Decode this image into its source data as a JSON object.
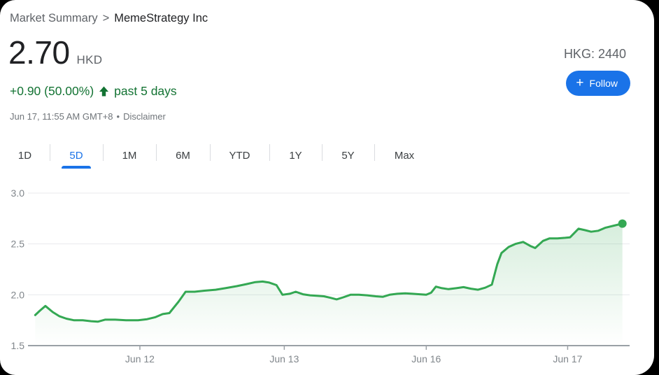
{
  "header": {
    "breadcrumb_root": "Market Summary",
    "separator": ">",
    "company": "MemeStrategy Inc"
  },
  "quote": {
    "price": "2.70",
    "currency": "HKD",
    "change": "+0.90 (50.00%)",
    "change_direction": "up",
    "change_suffix": "past 5 days",
    "timestamp": "Jun 17, 11:55 AM GMT+8",
    "dot_separator": "•",
    "disclaimer_label": "Disclaimer",
    "exchange_ticker": "HKG: 2440"
  },
  "follow_button": {
    "plus": "+",
    "label": "Follow"
  },
  "tabs": {
    "items": [
      "1D",
      "5D",
      "1M",
      "6M",
      "YTD",
      "1Y",
      "5Y",
      "Max"
    ],
    "active": "5D"
  },
  "colors": {
    "accent_blue": "#1a73e8",
    "text_green": "#137333",
    "line_green": "#34a853",
    "grid_gray": "#e8eaed",
    "axis_gray": "#9aa0a6",
    "label_gray": "#80868b"
  },
  "chart_data": {
    "type": "line",
    "title": "MemeStrategy Inc stock price, past 5 days",
    "currency": "HKD",
    "ylim": [
      1.5,
      3.0
    ],
    "y_ticks": [
      3.0,
      2.5,
      2.0,
      1.5
    ],
    "grid": true,
    "legend": "none",
    "x_ticks": [
      {
        "label": "Jun 12",
        "t": 18.6
      },
      {
        "label": "Jun 13",
        "t": 42.6
      },
      {
        "label": "Jun 16",
        "t": 66.2
      },
      {
        "label": "Jun 17",
        "t": 89.7
      }
    ],
    "points": [
      [
        1.2,
        1.8
      ],
      [
        2.0,
        1.845
      ],
      [
        2.9,
        1.89
      ],
      [
        4.1,
        1.83
      ],
      [
        5.2,
        1.79
      ],
      [
        6.4,
        1.765
      ],
      [
        7.6,
        1.75
      ],
      [
        9.1,
        1.75
      ],
      [
        10.5,
        1.74
      ],
      [
        11.6,
        1.735
      ],
      [
        12.8,
        1.755
      ],
      [
        14.5,
        1.755
      ],
      [
        16.3,
        1.75
      ],
      [
        18.3,
        1.75
      ],
      [
        19.8,
        1.76
      ],
      [
        21.2,
        1.78
      ],
      [
        22.4,
        1.81
      ],
      [
        23.5,
        1.82
      ],
      [
        25.0,
        1.93
      ],
      [
        26.2,
        2.03
      ],
      [
        27.7,
        2.03
      ],
      [
        29.3,
        2.04
      ],
      [
        31.2,
        2.05
      ],
      [
        32.8,
        2.065
      ],
      [
        34.7,
        2.085
      ],
      [
        36.3,
        2.105
      ],
      [
        37.8,
        2.125
      ],
      [
        39.0,
        2.13
      ],
      [
        40.1,
        2.12
      ],
      [
        41.3,
        2.095
      ],
      [
        42.3,
        2.0
      ],
      [
        43.5,
        2.01
      ],
      [
        44.5,
        2.03
      ],
      [
        45.7,
        2.005
      ],
      [
        46.9,
        1.995
      ],
      [
        48.0,
        1.99
      ],
      [
        49.2,
        1.985
      ],
      [
        50.3,
        1.97
      ],
      [
        51.3,
        1.955
      ],
      [
        52.4,
        1.975
      ],
      [
        53.6,
        2.0
      ],
      [
        55.0,
        2.0
      ],
      [
        56.4,
        1.995
      ],
      [
        57.8,
        1.985
      ],
      [
        59.0,
        1.98
      ],
      [
        60.1,
        2.0
      ],
      [
        61.4,
        2.01
      ],
      [
        62.7,
        2.015
      ],
      [
        63.9,
        2.01
      ],
      [
        65.1,
        2.005
      ],
      [
        66.2,
        2.0
      ],
      [
        67.0,
        2.02
      ],
      [
        67.8,
        2.08
      ],
      [
        68.8,
        2.065
      ],
      [
        69.9,
        2.055
      ],
      [
        71.2,
        2.065
      ],
      [
        72.4,
        2.075
      ],
      [
        73.6,
        2.06
      ],
      [
        74.8,
        2.05
      ],
      [
        76.0,
        2.07
      ],
      [
        77.1,
        2.1
      ],
      [
        78.0,
        2.3
      ],
      [
        78.7,
        2.41
      ],
      [
        79.9,
        2.47
      ],
      [
        81.0,
        2.5
      ],
      [
        82.3,
        2.52
      ],
      [
        83.5,
        2.48
      ],
      [
        84.3,
        2.46
      ],
      [
        85.6,
        2.53
      ],
      [
        86.7,
        2.555
      ],
      [
        88.0,
        2.555
      ],
      [
        89.3,
        2.56
      ],
      [
        90.1,
        2.565
      ],
      [
        91.5,
        2.65
      ],
      [
        92.6,
        2.635
      ],
      [
        93.6,
        2.62
      ],
      [
        94.8,
        2.63
      ],
      [
        96.0,
        2.66
      ],
      [
        97.4,
        2.68
      ],
      [
        98.8,
        2.7
      ]
    ],
    "last_point_marker": true,
    "last_price": 2.7
  }
}
